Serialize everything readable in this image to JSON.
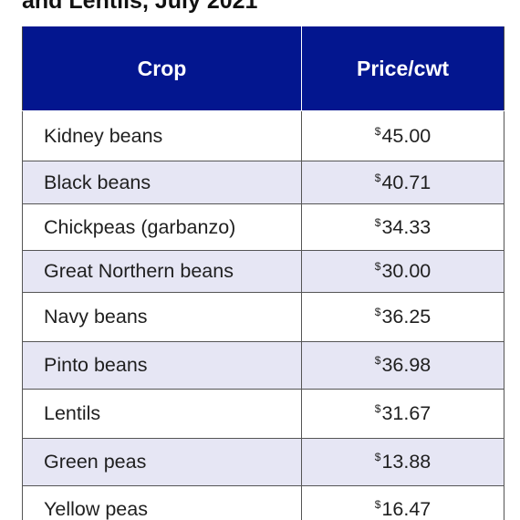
{
  "title": "and Lentils, July 2021",
  "table": {
    "headers": [
      "Crop",
      "Price/cwt"
    ],
    "currency_symbol": "$",
    "rows": [
      {
        "crop": "Kidney beans",
        "price": "45.00"
      },
      {
        "crop": "Black beans",
        "price": "40.71"
      },
      {
        "crop": "Chickpeas (garbanzo)",
        "price": "34.33"
      },
      {
        "crop": "Great Northern beans",
        "price": "30.00"
      },
      {
        "crop": "Navy beans",
        "price": "36.25"
      },
      {
        "crop": "Pinto beans",
        "price": "36.98"
      },
      {
        "crop": "Lentils",
        "price": "31.67"
      },
      {
        "crop": "Green peas",
        "price": "13.88"
      },
      {
        "crop": "Yellow peas",
        "price": "16.47"
      }
    ]
  },
  "colors": {
    "header_background": "#03168f",
    "header_text": "#ffffff",
    "alternate_row": "#e6e6f4",
    "row": "#ffffff",
    "border": "#555555"
  }
}
